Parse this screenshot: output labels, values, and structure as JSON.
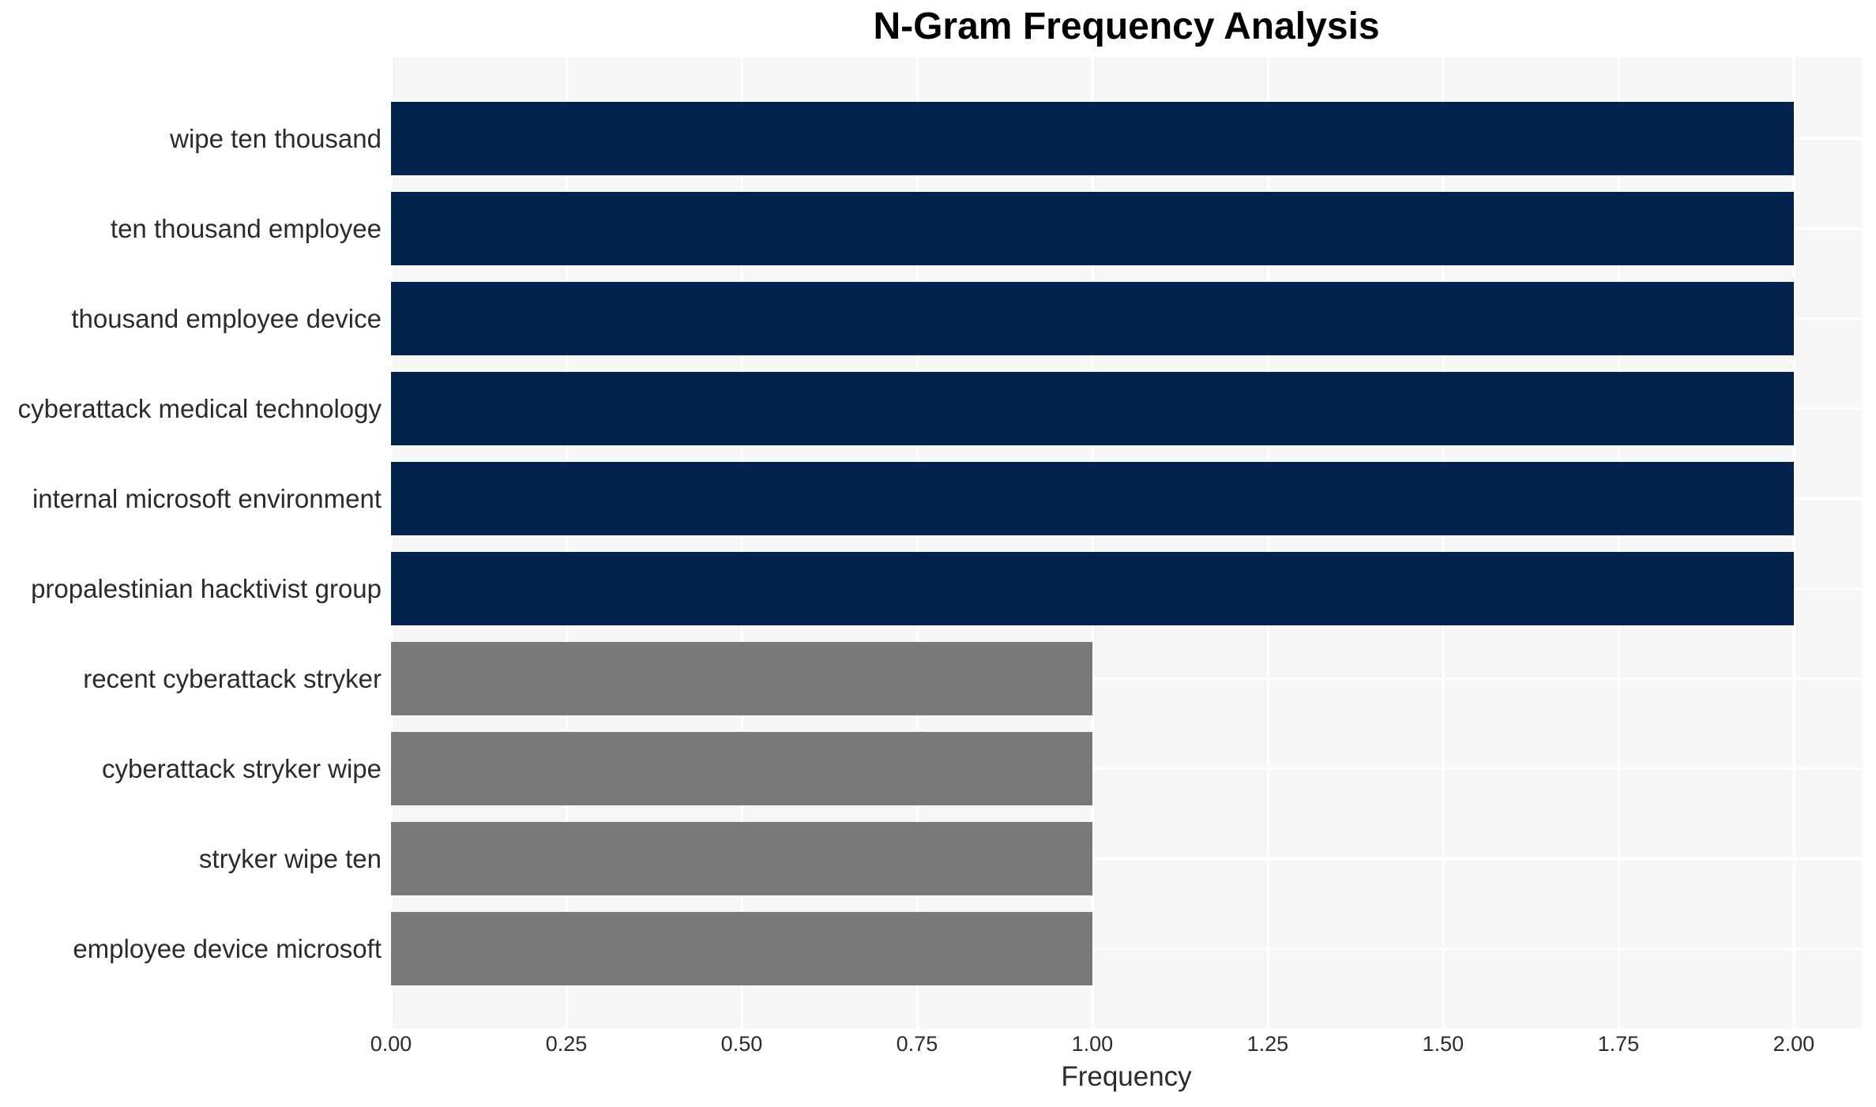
{
  "chart_data": {
    "type": "bar",
    "orientation": "horizontal",
    "title": "N-Gram Frequency Analysis",
    "xlabel": "Frequency",
    "ylabel": "",
    "categories": [
      "wipe ten thousand",
      "ten thousand employee",
      "thousand employee device",
      "cyberattack medical technology",
      "internal microsoft environment",
      "propalestinian hacktivist group",
      "recent cyberattack stryker",
      "cyberattack stryker wipe",
      "stryker wipe ten",
      "employee device microsoft"
    ],
    "values": [
      2,
      2,
      2,
      2,
      2,
      2,
      1,
      1,
      1,
      1
    ],
    "bar_colors": [
      "#02234d",
      "#02234d",
      "#02234d",
      "#02234d",
      "#02234d",
      "#02234d",
      "#7b7977",
      "#7b7977",
      "#7b7977",
      "#7b7977"
    ],
    "xlim": [
      0,
      2.097
    ],
    "xtick_values": [
      0.0,
      0.25,
      0.5,
      0.75,
      1.0,
      1.25,
      1.5,
      1.75,
      2.0
    ],
    "xtick_labels": [
      "0.00",
      "0.25",
      "0.50",
      "0.75",
      "1.00",
      "1.25",
      "1.50",
      "1.75",
      "2.00"
    ],
    "grid": "on",
    "legend": "none",
    "colors": {
      "plot_background": "#f7f7f7",
      "gridline": "#ffffff",
      "high_value_bar": "#02234d",
      "low_value_bar": "#7b7977",
      "tick_text": "#2b2b2b",
      "label_text": "#2b2b2b",
      "title_text": "#000000"
    }
  }
}
